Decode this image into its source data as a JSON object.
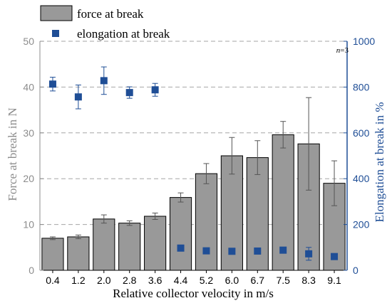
{
  "chart_data": {
    "type": "bar",
    "categories": [
      "0.4",
      "1.2",
      "2.0",
      "2.8",
      "3.6",
      "4.4",
      "5.2",
      "6.0",
      "6.7",
      "7.5",
      "8.3",
      "9.1"
    ],
    "series": [
      {
        "name": "force at break",
        "axis": "left",
        "mark": "bar",
        "color": "#999999",
        "values": [
          7.0,
          7.3,
          11.2,
          10.3,
          11.8,
          15.9,
          21.1,
          25.0,
          24.6,
          29.6,
          27.6,
          19.0
        ],
        "error": [
          0.3,
          0.4,
          0.9,
          0.5,
          0.7,
          1.0,
          2.2,
          4.0,
          3.7,
          2.9,
          10.1,
          4.9
        ]
      },
      {
        "name": "elongation at break",
        "axis": "right",
        "mark": "square",
        "color": "#1f4e96",
        "values": [
          813,
          757,
          828,
          776,
          788,
          97,
          85,
          83,
          84,
          88,
          72,
          60
        ],
        "error": [
          30,
          52,
          60,
          25,
          28,
          0,
          0,
          0,
          0,
          0,
          28,
          0
        ]
      }
    ],
    "xlabel": "Relative collector velocity in m/s",
    "ylabel_left": "Force at break in N",
    "ylabel_right": "Elongation at break in %",
    "ylim_left": [
      0,
      50
    ],
    "yticks_left": [
      "0",
      "10",
      "20",
      "30",
      "40",
      "50"
    ],
    "ylim_right": [
      0,
      1000
    ],
    "yticks_right": [
      "0",
      "200",
      "400",
      "600",
      "800",
      "1000"
    ],
    "grid": "horizontal dashed",
    "legend": "top-left",
    "annotation_prefix": "n",
    "annotation_value": "=3",
    "colors": {
      "left_axis": "#8c8c8c",
      "right_axis": "#1f4e96",
      "grid": "#a6a6a6",
      "bar_edge": "#000000"
    }
  }
}
